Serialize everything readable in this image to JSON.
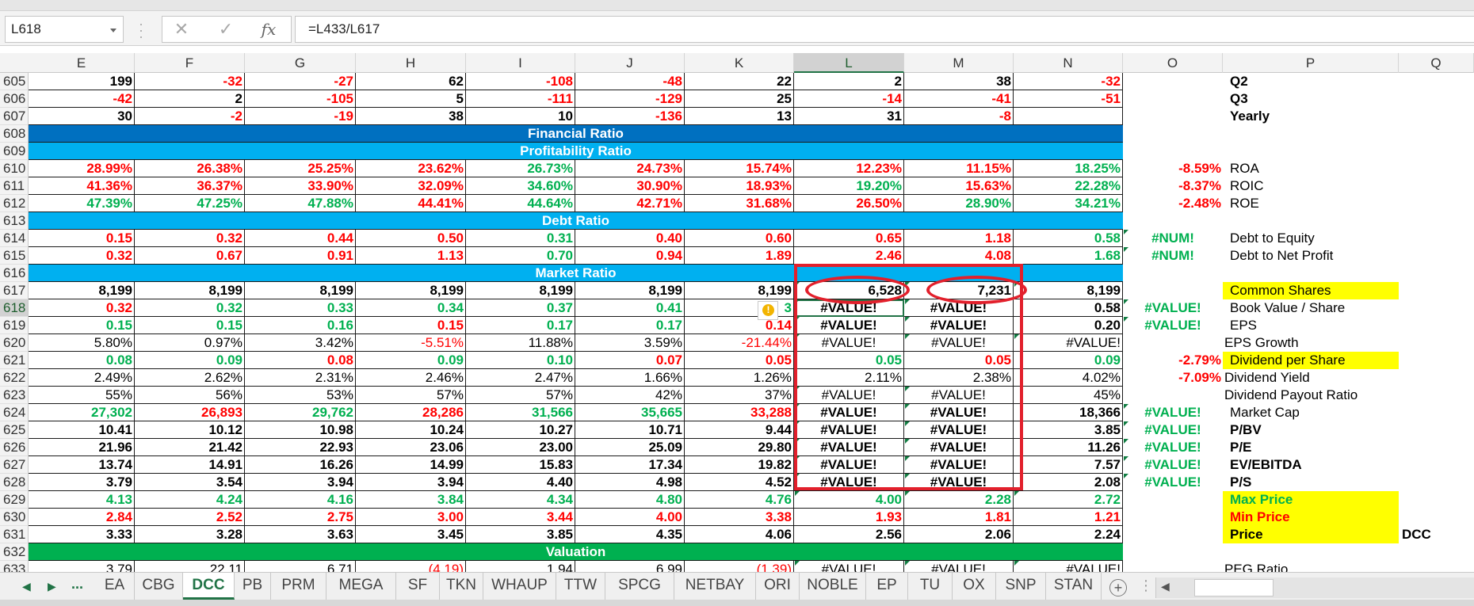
{
  "formula_bar": {
    "name_box": "L618",
    "cancel_icon": "✕",
    "enter_icon": "✓",
    "fx_label": "fx",
    "formula": "=L433/L617"
  },
  "columns": [
    "E",
    "F",
    "G",
    "H",
    "I",
    "J",
    "K",
    "L",
    "M",
    "N",
    "O",
    "P",
    "Q"
  ],
  "selected_column": "L",
  "selected_row": "618",
  "rows": [
    {
      "num": "605",
      "type": "data",
      "cells": [
        [
          "199",
          "black"
        ],
        [
          "-32",
          "red"
        ],
        [
          "-27",
          "red"
        ],
        [
          "62",
          "black"
        ],
        [
          "-108",
          "red"
        ],
        [
          "-48",
          "red"
        ],
        [
          "22",
          "black"
        ],
        [
          "2",
          "black"
        ],
        [
          "38",
          "black"
        ],
        [
          "-32",
          "red"
        ]
      ],
      "bold": true,
      "o": "",
      "p": "Q2",
      "p_bold": true
    },
    {
      "num": "606",
      "type": "data",
      "cells": [
        [
          "-42",
          "red"
        ],
        [
          "2",
          "black"
        ],
        [
          "-105",
          "red"
        ],
        [
          "5",
          "black"
        ],
        [
          "-111",
          "red"
        ],
        [
          "-129",
          "red"
        ],
        [
          "25",
          "black"
        ],
        [
          "-14",
          "red"
        ],
        [
          "-41",
          "red"
        ],
        [
          "-51",
          "red"
        ]
      ],
      "bold": true,
      "o": "",
      "p": "Q3",
      "p_bold": true
    },
    {
      "num": "607",
      "type": "data",
      "cells": [
        [
          "30",
          "black"
        ],
        [
          "-2",
          "red"
        ],
        [
          "-19",
          "red"
        ],
        [
          "38",
          "black"
        ],
        [
          "10",
          "black"
        ],
        [
          "-136",
          "red"
        ],
        [
          "13",
          "black"
        ],
        [
          "31",
          "black"
        ],
        [
          "-8",
          "red"
        ],
        [
          "",
          ""
        ]
      ],
      "bold": true,
      "o": "",
      "p": "Yearly",
      "p_bold": true
    },
    {
      "num": "608",
      "type": "band",
      "style": "dark",
      "label": "Financial Ratio"
    },
    {
      "num": "609",
      "type": "band",
      "style": "light",
      "label": "Profitability Ratio"
    },
    {
      "num": "610",
      "type": "data",
      "cells": [
        [
          "28.99%",
          "red"
        ],
        [
          "26.38%",
          "red"
        ],
        [
          "25.25%",
          "red"
        ],
        [
          "23.62%",
          "red"
        ],
        [
          "26.73%",
          "green"
        ],
        [
          "24.73%",
          "red"
        ],
        [
          "15.74%",
          "red"
        ],
        [
          "12.23%",
          "red"
        ],
        [
          "11.15%",
          "red"
        ],
        [
          "18.25%",
          "green"
        ]
      ],
      "bold": true,
      "o": "-8.59%",
      "o_color": "red",
      "p": "ROA"
    },
    {
      "num": "611",
      "type": "data",
      "cells": [
        [
          "41.36%",
          "red"
        ],
        [
          "36.37%",
          "red"
        ],
        [
          "33.90%",
          "red"
        ],
        [
          "32.09%",
          "red"
        ],
        [
          "34.60%",
          "green"
        ],
        [
          "30.90%",
          "red"
        ],
        [
          "18.93%",
          "red"
        ],
        [
          "19.20%",
          "green"
        ],
        [
          "15.63%",
          "red"
        ],
        [
          "22.28%",
          "green"
        ]
      ],
      "bold": true,
      "o": "-8.37%",
      "o_color": "red",
      "p": "ROIC"
    },
    {
      "num": "612",
      "type": "data",
      "cells": [
        [
          "47.39%",
          "green"
        ],
        [
          "47.25%",
          "green"
        ],
        [
          "47.88%",
          "green"
        ],
        [
          "44.41%",
          "red"
        ],
        [
          "44.64%",
          "green"
        ],
        [
          "42.71%",
          "red"
        ],
        [
          "31.68%",
          "red"
        ],
        [
          "26.50%",
          "red"
        ],
        [
          "28.90%",
          "green"
        ],
        [
          "34.21%",
          "green"
        ]
      ],
      "bold": true,
      "o": "-2.48%",
      "o_color": "red",
      "p": "ROE"
    },
    {
      "num": "613",
      "type": "band",
      "style": "light",
      "label": "Debt Ratio"
    },
    {
      "num": "614",
      "type": "data",
      "cells": [
        [
          "0.15",
          "red"
        ],
        [
          "0.32",
          "red"
        ],
        [
          "0.44",
          "red"
        ],
        [
          "0.50",
          "red"
        ],
        [
          "0.31",
          "green"
        ],
        [
          "0.40",
          "red"
        ],
        [
          "0.60",
          "red"
        ],
        [
          "0.65",
          "red"
        ],
        [
          "1.18",
          "red"
        ],
        [
          "0.58",
          "green"
        ]
      ],
      "bold": true,
      "o": "#NUM!",
      "o_color": "green",
      "o_center": true,
      "p": "Debt to Equity"
    },
    {
      "num": "615",
      "type": "data",
      "cells": [
        [
          "0.32",
          "red"
        ],
        [
          "0.67",
          "red"
        ],
        [
          "0.91",
          "red"
        ],
        [
          "1.13",
          "red"
        ],
        [
          "0.70",
          "green"
        ],
        [
          "0.94",
          "red"
        ],
        [
          "1.89",
          "red"
        ],
        [
          "2.46",
          "red"
        ],
        [
          "4.08",
          "red"
        ],
        [
          "1.68",
          "green"
        ]
      ],
      "bold": true,
      "o": "#NUM!",
      "o_color": "green",
      "o_center": true,
      "p": "Debt to Net Profit"
    },
    {
      "num": "616",
      "type": "band",
      "style": "light",
      "label": "Market Ratio"
    },
    {
      "num": "617",
      "type": "data",
      "cells": [
        [
          "8,199",
          "black"
        ],
        [
          "8,199",
          "black"
        ],
        [
          "8,199",
          "black"
        ],
        [
          "8,199",
          "black"
        ],
        [
          "8,199",
          "black"
        ],
        [
          "8,199",
          "black"
        ],
        [
          "8,199",
          "black"
        ],
        [
          "6,528",
          "black"
        ],
        [
          "7,231",
          "black"
        ],
        [
          "8,199",
          "black"
        ]
      ],
      "bold": true,
      "o": "",
      "p": "Common Shares",
      "p_yellow": true
    },
    {
      "num": "618",
      "type": "data",
      "cells": [
        [
          "0.32",
          "red"
        ],
        [
          "0.32",
          "green"
        ],
        [
          "0.33",
          "green"
        ],
        [
          "0.34",
          "green"
        ],
        [
          "0.37",
          "green"
        ],
        [
          "0.41",
          "green"
        ],
        [
          "3",
          "green"
        ],
        [
          "#VALUE!",
          "black"
        ],
        [
          "#VALUE!",
          "black"
        ],
        [
          "0.58",
          "black"
        ]
      ],
      "bold": true,
      "o": "#VALUE!",
      "o_color": "green",
      "o_center": true,
      "p": "Book Value / Share"
    },
    {
      "num": "619",
      "type": "data",
      "cells": [
        [
          "0.15",
          "green"
        ],
        [
          "0.15",
          "green"
        ],
        [
          "0.16",
          "green"
        ],
        [
          "0.15",
          "red"
        ],
        [
          "0.17",
          "green"
        ],
        [
          "0.17",
          "green"
        ],
        [
          "0.14",
          "red"
        ],
        [
          "#VALUE!",
          "black"
        ],
        [
          "#VALUE!",
          "black"
        ],
        [
          "0.20",
          "black"
        ]
      ],
      "bold": true,
      "o": "#VALUE!",
      "o_color": "green",
      "o_center": true,
      "p": "EPS"
    },
    {
      "num": "620",
      "type": "data",
      "cells": [
        [
          "5.80%",
          "black"
        ],
        [
          "0.97%",
          "black"
        ],
        [
          "3.42%",
          "black"
        ],
        [
          "-5.51%",
          "red"
        ],
        [
          "11.88%",
          "black"
        ],
        [
          "3.59%",
          "black"
        ],
        [
          "-21.44%",
          "red"
        ],
        [
          "#VALUE!",
          "black"
        ],
        [
          "#VALUE!",
          "black"
        ],
        [
          "#VALUE!",
          "black"
        ]
      ],
      "bold": false,
      "o": "",
      "p": "EPS Growth",
      "p_left": true
    },
    {
      "num": "621",
      "type": "data",
      "cells": [
        [
          "0.08",
          "green"
        ],
        [
          "0.09",
          "green"
        ],
        [
          "0.08",
          "red"
        ],
        [
          "0.09",
          "green"
        ],
        [
          "0.10",
          "green"
        ],
        [
          "0.07",
          "red"
        ],
        [
          "0.05",
          "red"
        ],
        [
          "0.05",
          "green"
        ],
        [
          "0.05",
          "red"
        ],
        [
          "0.09",
          "green"
        ]
      ],
      "bold": true,
      "o": "-2.79%",
      "o_color": "red",
      "p": "Dividend per Share",
      "p_yellow": true
    },
    {
      "num": "622",
      "type": "data",
      "cells": [
        [
          "2.49%",
          "black"
        ],
        [
          "2.62%",
          "black"
        ],
        [
          "2.31%",
          "black"
        ],
        [
          "2.46%",
          "black"
        ],
        [
          "2.47%",
          "black"
        ],
        [
          "1.66%",
          "black"
        ],
        [
          "1.26%",
          "black"
        ],
        [
          "2.11%",
          "black"
        ],
        [
          "2.38%",
          "black"
        ],
        [
          "4.02%",
          "black"
        ]
      ],
      "bold": false,
      "o": "-7.09%",
      "o_color": "red",
      "p": "Dividend Yield",
      "p_left": true
    },
    {
      "num": "623",
      "type": "data",
      "cells": [
        [
          "55%",
          "black"
        ],
        [
          "56%",
          "black"
        ],
        [
          "53%",
          "black"
        ],
        [
          "57%",
          "black"
        ],
        [
          "57%",
          "black"
        ],
        [
          "42%",
          "black"
        ],
        [
          "37%",
          "black"
        ],
        [
          "#VALUE!",
          "black"
        ],
        [
          "#VALUE!",
          "black"
        ],
        [
          "45%",
          "black"
        ]
      ],
      "bold": false,
      "o": "",
      "p": "Dividend Payout Ratio",
      "p_left": true
    },
    {
      "num": "624",
      "type": "data",
      "cells": [
        [
          "27,302",
          "green"
        ],
        [
          "26,893",
          "red"
        ],
        [
          "29,762",
          "green"
        ],
        [
          "28,286",
          "red"
        ],
        [
          "31,566",
          "green"
        ],
        [
          "35,665",
          "green"
        ],
        [
          "33,288",
          "red"
        ],
        [
          "#VALUE!",
          "black"
        ],
        [
          "#VALUE!",
          "black"
        ],
        [
          "18,366",
          "black"
        ]
      ],
      "bold": true,
      "o": "#VALUE!",
      "o_color": "green",
      "o_center": true,
      "p": "Market Cap"
    },
    {
      "num": "625",
      "type": "data",
      "cells": [
        [
          "10.41",
          "black"
        ],
        [
          "10.12",
          "black"
        ],
        [
          "10.98",
          "black"
        ],
        [
          "10.24",
          "black"
        ],
        [
          "10.27",
          "black"
        ],
        [
          "10.71",
          "black"
        ],
        [
          "9.44",
          "black"
        ],
        [
          "#VALUE!",
          "black"
        ],
        [
          "#VALUE!",
          "black"
        ],
        [
          "3.85",
          "black"
        ]
      ],
      "bold": true,
      "o": "#VALUE!",
      "o_color": "green",
      "o_center": true,
      "p": "P/BV",
      "p_bold": true
    },
    {
      "num": "626",
      "type": "data",
      "cells": [
        [
          "21.96",
          "black"
        ],
        [
          "21.42",
          "black"
        ],
        [
          "22.93",
          "black"
        ],
        [
          "23.06",
          "black"
        ],
        [
          "23.00",
          "black"
        ],
        [
          "25.09",
          "black"
        ],
        [
          "29.80",
          "black"
        ],
        [
          "#VALUE!",
          "black"
        ],
        [
          "#VALUE!",
          "black"
        ],
        [
          "11.26",
          "black"
        ]
      ],
      "bold": true,
      "o": "#VALUE!",
      "o_color": "green",
      "o_center": true,
      "p": "P/E",
      "p_bold": true
    },
    {
      "num": "627",
      "type": "data",
      "cells": [
        [
          "13.74",
          "black"
        ],
        [
          "14.91",
          "black"
        ],
        [
          "16.26",
          "black"
        ],
        [
          "14.99",
          "black"
        ],
        [
          "15.83",
          "black"
        ],
        [
          "17.34",
          "black"
        ],
        [
          "19.82",
          "black"
        ],
        [
          "#VALUE!",
          "black"
        ],
        [
          "#VALUE!",
          "black"
        ],
        [
          "7.57",
          "black"
        ]
      ],
      "bold": true,
      "o": "#VALUE!",
      "o_color": "green",
      "o_center": true,
      "p": "EV/EBITDA",
      "p_bold": true
    },
    {
      "num": "628",
      "type": "data",
      "cells": [
        [
          "3.79",
          "black"
        ],
        [
          "3.54",
          "black"
        ],
        [
          "3.94",
          "black"
        ],
        [
          "3.94",
          "black"
        ],
        [
          "4.40",
          "black"
        ],
        [
          "4.98",
          "black"
        ],
        [
          "4.52",
          "black"
        ],
        [
          "#VALUE!",
          "black"
        ],
        [
          "#VALUE!",
          "black"
        ],
        [
          "2.08",
          "black"
        ]
      ],
      "bold": true,
      "o": "#VALUE!",
      "o_color": "green",
      "o_center": true,
      "p": "P/S",
      "p_bold": true
    },
    {
      "num": "629",
      "type": "data",
      "cells": [
        [
          "4.13",
          "green"
        ],
        [
          "4.24",
          "green"
        ],
        [
          "4.16",
          "green"
        ],
        [
          "3.84",
          "green"
        ],
        [
          "4.34",
          "green"
        ],
        [
          "4.80",
          "green"
        ],
        [
          "4.76",
          "green"
        ],
        [
          "4.00",
          "green"
        ],
        [
          "2.28",
          "green"
        ],
        [
          "2.72",
          "green"
        ]
      ],
      "bold": true,
      "o": "",
      "p": "Max Price",
      "p_yellow": true,
      "p_bold": true,
      "p_color": "green"
    },
    {
      "num": "630",
      "type": "data",
      "cells": [
        [
          "2.84",
          "red"
        ],
        [
          "2.52",
          "red"
        ],
        [
          "2.75",
          "red"
        ],
        [
          "3.00",
          "red"
        ],
        [
          "3.44",
          "red"
        ],
        [
          "4.00",
          "red"
        ],
        [
          "3.38",
          "red"
        ],
        [
          "1.93",
          "red"
        ],
        [
          "1.81",
          "red"
        ],
        [
          "1.21",
          "red"
        ]
      ],
      "bold": true,
      "o": "",
      "p": "Min Price",
      "p_yellow": true,
      "p_bold": true,
      "p_color": "red"
    },
    {
      "num": "631",
      "type": "data",
      "cells": [
        [
          "3.33",
          "black"
        ],
        [
          "3.28",
          "black"
        ],
        [
          "3.63",
          "black"
        ],
        [
          "3.45",
          "black"
        ],
        [
          "3.85",
          "black"
        ],
        [
          "4.35",
          "black"
        ],
        [
          "4.06",
          "black"
        ],
        [
          "2.56",
          "black"
        ],
        [
          "2.06",
          "black"
        ],
        [
          "2.24",
          "black"
        ]
      ],
      "bold": true,
      "o": "",
      "p": "Price",
      "p_yellow": true,
      "p_bold": true,
      "q": "DCC"
    },
    {
      "num": "632",
      "type": "band",
      "style": "val",
      "label": "Valuation"
    },
    {
      "num": "633",
      "type": "data",
      "cells": [
        [
          "3.79",
          "black"
        ],
        [
          "22.11",
          "black"
        ],
        [
          "6.71",
          "black"
        ],
        [
          "(4.19)",
          "red"
        ],
        [
          "1.94",
          "black"
        ],
        [
          "6.99",
          "black"
        ],
        [
          "(1.39)",
          "red"
        ],
        [
          "#VALUE!",
          "black"
        ],
        [
          "#VALUE!",
          "black"
        ],
        [
          "#VALUE!",
          "black"
        ]
      ],
      "bold": false,
      "o": "",
      "p": "PEG Ratio",
      "p_left": true
    }
  ],
  "sheet_tabs": [
    "EA",
    "CBG",
    "DCC",
    "PB",
    "PRM",
    "MEGA",
    "SF",
    "TKN",
    "WHAUP",
    "TTW",
    "SPCG",
    "NETBAY",
    "ORI",
    "NOBLE",
    "EP",
    "TU",
    "OX",
    "SNP",
    "STAN ..."
  ],
  "active_tab": "DCC",
  "tab_nav": {
    "prev": "◀",
    "next": "▶",
    "more": "...",
    "add": "+",
    "scroll_left": "◀"
  },
  "colors": {
    "accent": "#217346",
    "dark_band": "#0070c0",
    "light_band": "#00b0f0",
    "valuation_band": "#00b050",
    "highlight": "#ffff00",
    "annotation": "#e2202c"
  }
}
